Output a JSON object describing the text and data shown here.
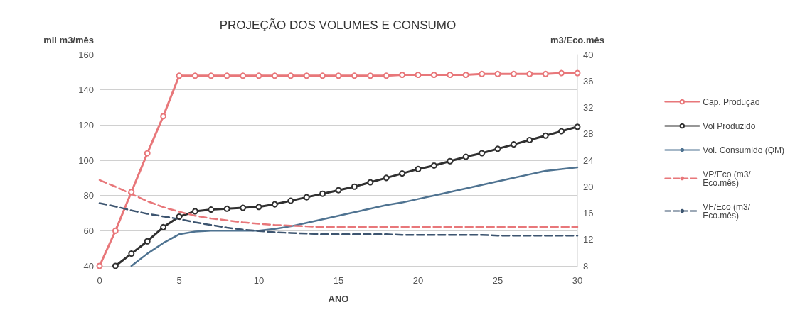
{
  "chart_data": {
    "type": "line",
    "title": "PROJEÇÃO DOS VOLUMES E CONSUMO",
    "xlabel": "ANO",
    "ylabel": "mil m3/mês",
    "y2label": "m3/Eco.mês",
    "xlim": [
      0,
      30
    ],
    "xticks": [
      0,
      5,
      10,
      15,
      20,
      25,
      30
    ],
    "ylim": [
      40,
      160
    ],
    "yticks": [
      40,
      60,
      80,
      100,
      120,
      140,
      160
    ],
    "y2lim": [
      8,
      40
    ],
    "y2ticks": [
      8,
      12,
      16,
      20,
      24,
      28,
      32,
      36,
      40
    ],
    "grid": "y",
    "legend": "right",
    "series": [
      {
        "name": "Cap. Produção",
        "color": "#e8777a",
        "marker": "circle",
        "line_style": "solid",
        "x": [
          0,
          1,
          2,
          3,
          4,
          5,
          6,
          7,
          8,
          9,
          10,
          11,
          12,
          13,
          14,
          15,
          16,
          17,
          18,
          19,
          20,
          21,
          22,
          23,
          24,
          25,
          26,
          27,
          28,
          29,
          30
        ],
        "values": [
          40,
          60,
          82,
          104,
          125,
          148,
          148,
          148,
          148,
          148,
          148,
          148,
          148,
          148,
          148,
          148,
          148,
          148,
          148,
          148.5,
          148.5,
          148.5,
          148.5,
          148.5,
          149,
          149,
          149,
          149,
          149,
          149.5,
          149.5
        ]
      },
      {
        "name": "Vol Produzido",
        "color": "#303030",
        "marker": "circle",
        "line_style": "solid",
        "x": [
          1,
          2,
          3,
          4,
          5,
          6,
          7,
          8,
          9,
          10,
          11,
          12,
          13,
          14,
          15,
          16,
          17,
          18,
          19,
          20,
          21,
          22,
          23,
          24,
          25,
          26,
          27,
          28,
          29,
          30
        ],
        "values": [
          40,
          47,
          54,
          62,
          68,
          71,
          72,
          72.5,
          73,
          73.5,
          75,
          77,
          79,
          81,
          83,
          85,
          87.5,
          90,
          92.5,
          95,
          97,
          99.5,
          102,
          104,
          106.5,
          109,
          111.5,
          114,
          116.5,
          119
        ]
      },
      {
        "name": "Vol. Consumido (QM)",
        "color": "#4f7391",
        "marker": "none",
        "line_style": "solid",
        "x": [
          2,
          3,
          4,
          5,
          6,
          7,
          8,
          9,
          10,
          11,
          12,
          13,
          14,
          15,
          16,
          17,
          18,
          19,
          20,
          21,
          22,
          23,
          24,
          25,
          26,
          27,
          28,
          29,
          30
        ],
        "values": [
          40,
          47,
          53,
          58,
          59.5,
          60,
          60,
          60,
          60,
          61,
          62.5,
          64.5,
          66.5,
          68.5,
          70.5,
          72.5,
          74.5,
          76,
          78,
          80,
          82,
          84,
          86,
          88,
          90,
          92,
          94,
          95,
          96
        ]
      },
      {
        "name": "VP/Eco (m3/Eco.mês)",
        "color": "#e8777a",
        "marker": "none",
        "line_style": "dashed",
        "axis": "y2",
        "x": [
          0,
          1,
          2,
          3,
          4,
          5,
          6,
          7,
          8,
          9,
          10,
          11,
          12,
          13,
          14,
          15,
          16,
          17,
          18,
          19,
          20,
          21,
          22,
          23,
          24,
          25,
          26,
          27,
          28,
          29,
          30
        ],
        "values": [
          21,
          20,
          18.9,
          17.8,
          16.9,
          16.2,
          15.6,
          15.2,
          14.9,
          14.6,
          14.4,
          14.2,
          14.1,
          14,
          13.9,
          13.9,
          13.9,
          13.9,
          13.9,
          13.9,
          13.9,
          13.9,
          13.9,
          13.9,
          13.9,
          13.9,
          13.9,
          13.9,
          13.9,
          13.9,
          13.9
        ]
      },
      {
        "name": "VF/Eco (m3/Eco.mês)",
        "color": "#3d5570",
        "marker": "none",
        "line_style": "dashed",
        "axis": "y2",
        "x": [
          0,
          1,
          2,
          3,
          4,
          5,
          6,
          7,
          8,
          9,
          10,
          11,
          12,
          13,
          14,
          15,
          16,
          17,
          18,
          19,
          20,
          21,
          22,
          23,
          24,
          25,
          26,
          27,
          28,
          29,
          30
        ],
        "values": [
          17.5,
          17,
          16.4,
          15.9,
          15.5,
          15.1,
          14.6,
          14.2,
          13.8,
          13.5,
          13.3,
          13.1,
          13,
          12.9,
          12.8,
          12.8,
          12.8,
          12.8,
          12.8,
          12.7,
          12.7,
          12.7,
          12.7,
          12.7,
          12.7,
          12.6,
          12.6,
          12.6,
          12.6,
          12.6,
          12.6
        ]
      }
    ]
  }
}
